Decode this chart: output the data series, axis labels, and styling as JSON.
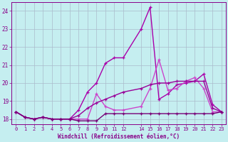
{
  "xlabel": "Windchill (Refroidissement éolien,°C)",
  "background_color": "#c5eef0",
  "grid_color": "#aabbcc",
  "xlim": [
    -0.5,
    23.5
  ],
  "ylim": [
    17.7,
    24.5
  ],
  "yticks": [
    18,
    19,
    20,
    21,
    22,
    23,
    24
  ],
  "xticks": [
    0,
    1,
    2,
    3,
    4,
    5,
    6,
    7,
    8,
    9,
    10,
    11,
    12,
    14,
    15,
    16,
    17,
    18,
    19,
    20,
    21,
    22,
    23
  ],
  "series": [
    {
      "x": [
        0,
        1,
        2,
        3,
        4,
        5,
        6,
        7,
        8,
        9,
        10,
        11,
        12,
        14,
        15,
        16,
        17,
        18,
        19,
        20,
        21,
        22,
        23
      ],
      "y": [
        18.4,
        18.1,
        18.0,
        18.1,
        18.0,
        18.0,
        18.0,
        18.5,
        19.5,
        20.0,
        21.1,
        21.4,
        21.4,
        23.0,
        24.2,
        19.1,
        19.4,
        19.9,
        20.0,
        20.1,
        20.5,
        18.8,
        18.4
      ],
      "color": "#aa00aa",
      "lw": 1.0
    },
    {
      "comment": "line with small peak at x=16 (21.3), has spike shape 18->18->19.4->18.5->18.5->18.7->19.0->19.5->20.0->21.3->19.6->19.8->20.3->19.7->18.4",
      "x": [
        0,
        1,
        2,
        3,
        4,
        5,
        6,
        7,
        8,
        9,
        10,
        11,
        12,
        14,
        15,
        16,
        17,
        18,
        19,
        20,
        21,
        22,
        23
      ],
      "y": [
        18.4,
        18.1,
        18.0,
        18.1,
        18.0,
        18.0,
        18.0,
        18.0,
        18.0,
        19.4,
        18.7,
        18.5,
        18.5,
        18.7,
        19.7,
        21.3,
        19.6,
        19.7,
        20.1,
        20.3,
        19.7,
        18.4,
        18.4
      ],
      "color": "#cc44cc",
      "lw": 1.0
    },
    {
      "x": [
        0,
        1,
        2,
        3,
        4,
        5,
        6,
        7,
        8,
        9,
        10,
        11,
        12,
        14,
        15,
        16,
        17,
        18,
        19,
        20,
        21,
        22,
        23
      ],
      "y": [
        18.4,
        18.1,
        18.0,
        18.1,
        18.0,
        18.0,
        18.0,
        18.2,
        18.6,
        18.9,
        19.1,
        19.3,
        19.5,
        19.7,
        19.9,
        20.0,
        20.0,
        20.1,
        20.1,
        20.1,
        20.1,
        18.6,
        18.4
      ],
      "color": "#990099",
      "lw": 1.0
    },
    {
      "x": [
        0,
        1,
        2,
        3,
        4,
        5,
        6,
        7,
        8,
        9,
        10,
        11,
        12,
        14,
        15,
        16,
        17,
        18,
        19,
        20,
        21,
        22,
        23
      ],
      "y": [
        18.4,
        18.1,
        18.0,
        18.1,
        18.0,
        18.0,
        18.0,
        17.9,
        17.9,
        17.9,
        18.3,
        18.3,
        18.3,
        18.3,
        18.3,
        18.3,
        18.3,
        18.3,
        18.3,
        18.3,
        18.3,
        18.3,
        18.4
      ],
      "color": "#770077",
      "lw": 1.0
    }
  ],
  "marker": "+",
  "markersize": 3.5,
  "markeredgewidth": 0.9
}
